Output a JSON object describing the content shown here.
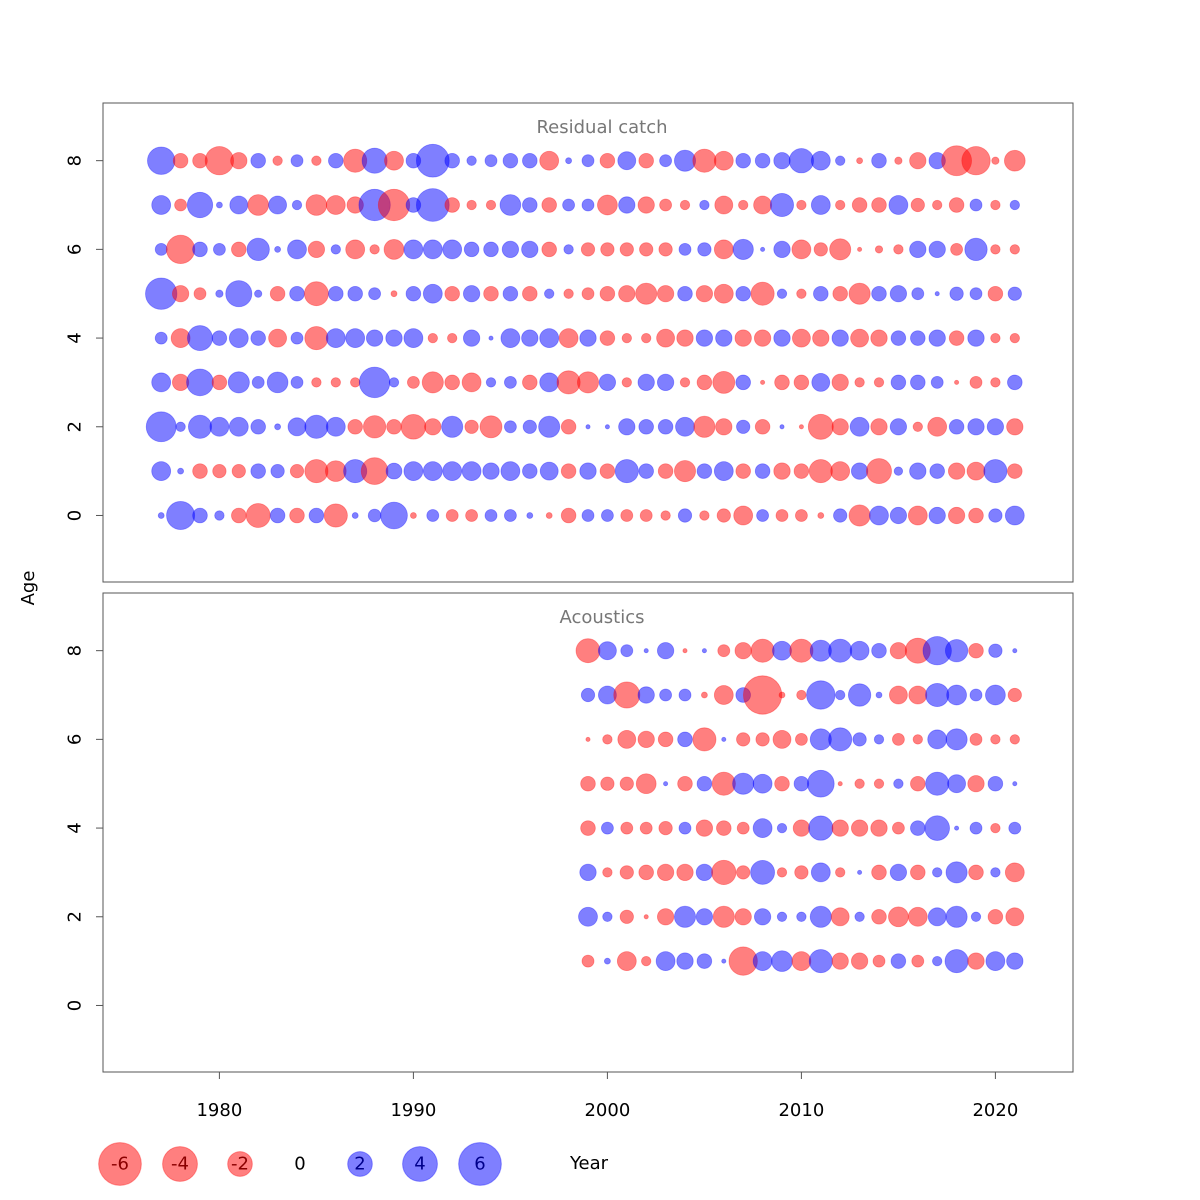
{
  "chart_data": {
    "type": "scatter",
    "subtype": "bubble",
    "ylabel": "Age",
    "xlabel": "Year",
    "xlim": [
      1974,
      2024
    ],
    "ylim": [
      -1.5,
      9.3
    ],
    "x_ticks": [
      1980,
      1990,
      2000,
      2010,
      2020
    ],
    "y_ticks": [
      0,
      2,
      4,
      6,
      8
    ],
    "colors": {
      "positive": "#0000ff",
      "negative": "#ff0000",
      "alpha": 0.5
    },
    "legend": {
      "position": "bottom",
      "entries": [
        {
          "value": -6,
          "label": "-6"
        },
        {
          "value": -4,
          "label": "-4"
        },
        {
          "value": -2,
          "label": "-2"
        },
        {
          "value": 0,
          "label": "0"
        },
        {
          "value": 2,
          "label": "2"
        },
        {
          "value": 4,
          "label": "4"
        },
        {
          "value": 6,
          "label": "6"
        }
      ]
    },
    "panels": [
      {
        "title": "Residual catch",
        "years": [
          1977,
          1978,
          1979,
          1980,
          1981,
          1982,
          1983,
          1984,
          1985,
          1986,
          1987,
          1988,
          1989,
          1990,
          1991,
          1992,
          1993,
          1994,
          1995,
          1996,
          1997,
          1998,
          1999,
          2000,
          2001,
          2002,
          2003,
          2004,
          2005,
          2006,
          2007,
          2008,
          2009,
          2010,
          2011,
          2012,
          2013,
          2014,
          2015,
          2016,
          2017,
          2018,
          2019,
          2020,
          2021
        ],
        "ages": [
          0,
          1,
          2,
          3,
          4,
          5,
          6,
          7,
          8
        ],
        "values": {
          "0": [
            0.2,
            4.4,
            1.2,
            0.5,
            -1.2,
            -3.2,
            1.2,
            -1.2,
            1.2,
            -3.0,
            0.2,
            0.9,
            4.0,
            -0.2,
            0.8,
            -0.8,
            -0.8,
            0.8,
            0.8,
            0.2,
            -0.2,
            -1.2,
            0.8,
            0.8,
            -0.8,
            -0.8,
            -0.5,
            1.0,
            -0.5,
            -1.0,
            -2.0,
            0.8,
            -0.8,
            -0.8,
            -0.2,
            1.0,
            -2.5,
            2.0,
            1.5,
            -2.0,
            1.5,
            -1.5,
            -1.2,
            1.0,
            2.0
          ],
          "1": [
            2.0,
            0.2,
            -1.2,
            -1.0,
            -1.0,
            1.2,
            1.0,
            -1.0,
            -3.0,
            -2.4,
            3.0,
            -4.0,
            1.4,
            2.0,
            2.0,
            2.0,
            2.0,
            1.5,
            2.0,
            1.2,
            1.8,
            -1.2,
            1.5,
            -1.2,
            3.0,
            1.2,
            -1.2,
            -2.5,
            1.2,
            2.0,
            -1.2,
            1.2,
            -1.5,
            -1.2,
            -3.0,
            -2.0,
            1.5,
            -3.5,
            0.4,
            1.5,
            1.2,
            -1.5,
            -1.8,
            3.0,
            -1.2
          ],
          "2": [
            5.0,
            0.5,
            3.0,
            2.0,
            2.0,
            1.2,
            0.2,
            1.8,
            3.0,
            2.0,
            -1.2,
            -2.8,
            -1.2,
            -3.4,
            -1.5,
            2.5,
            -1.0,
            -2.7,
            0.8,
            1.0,
            2.5,
            -1.2,
            0.1,
            0.1,
            1.5,
            1.2,
            1.2,
            2.0,
            -2.5,
            -1.5,
            1.0,
            -1.2,
            0.1,
            -0.1,
            -3.5,
            -1.5,
            2.0,
            -1.5,
            1.5,
            -0.5,
            -2.0,
            1.2,
            1.5,
            1.5,
            -1.5
          ],
          "3": [
            2.0,
            -1.5,
            4.0,
            -1.2,
            2.5,
            0.8,
            2.4,
            0.8,
            -0.5,
            -0.5,
            -0.5,
            5.2,
            0.5,
            -0.8,
            -2.5,
            -1.2,
            -2.0,
            0.5,
            0.8,
            -1.2,
            2.0,
            -3.0,
            -2.5,
            1.5,
            -0.5,
            1.5,
            1.5,
            -0.5,
            -1.2,
            -2.7,
            1.2,
            -0.1,
            -1.2,
            -1.2,
            1.8,
            -1.5,
            -0.5,
            -0.5,
            1.2,
            1.2,
            0.8,
            -0.1,
            -0.8,
            -0.5,
            1.2
          ],
          "4": [
            0.8,
            -2.0,
            3.5,
            1.2,
            2.0,
            1.2,
            -1.8,
            0.8,
            -3.0,
            2.0,
            2.0,
            1.5,
            1.5,
            2.0,
            -0.5,
            -0.5,
            1.5,
            0.1,
            2.0,
            1.5,
            2.0,
            -2.0,
            1.5,
            -1.2,
            -0.5,
            -0.5,
            -1.8,
            -1.5,
            1.5,
            1.5,
            -1.5,
            -1.5,
            1.5,
            -1.8,
            -1.5,
            1.5,
            -1.8,
            -1.5,
            1.2,
            1.2,
            1.5,
            -1.2,
            1.5,
            -0.5,
            -0.5
          ],
          "5": [
            5.5,
            -1.5,
            -0.8,
            0.3,
            3.8,
            0.3,
            -1.2,
            1.2,
            -3.2,
            1.2,
            1.2,
            0.8,
            -0.2,
            1.2,
            2.0,
            -1.2,
            1.5,
            -1.2,
            1.2,
            -1.2,
            0.5,
            -0.5,
            -0.8,
            -1.2,
            -1.5,
            -2.5,
            -1.5,
            1.2,
            -1.5,
            -2.0,
            1.2,
            -3.0,
            0.5,
            -0.5,
            1.2,
            -1.2,
            -2.5,
            1.2,
            1.5,
            0.8,
            0.1,
            1.0,
            0.8,
            -1.2,
            1.0
          ],
          "6": [
            0.8,
            -4.5,
            1.2,
            0.8,
            -1.2,
            2.8,
            0.2,
            2.0,
            -1.5,
            0.5,
            -2.0,
            -0.5,
            -2.2,
            2.0,
            2.0,
            2.0,
            1.2,
            1.2,
            1.5,
            1.5,
            -1.2,
            0.5,
            -1.0,
            -1.0,
            -1.0,
            -1.0,
            -1.0,
            0.8,
            1.0,
            -2.0,
            2.3,
            0.1,
            1.5,
            -2.0,
            -1.0,
            -2.5,
            -0.1,
            -0.3,
            -0.5,
            1.5,
            1.5,
            -0.8,
            2.8,
            -0.5,
            -0.5
          ],
          "7": [
            2.0,
            -0.8,
            3.6,
            0.2,
            1.8,
            -2.4,
            1.8,
            0.5,
            -2.4,
            -2.0,
            -1.5,
            5.5,
            -5.5,
            1.2,
            6.0,
            -1.2,
            -0.5,
            -0.5,
            2.4,
            1.2,
            -1.2,
            0.8,
            0.8,
            -2.2,
            1.5,
            -1.5,
            -0.8,
            -0.5,
            0.5,
            -1.8,
            -0.5,
            -1.8,
            3.0,
            -0.5,
            2.0,
            -0.5,
            -1.2,
            -1.2,
            2.0,
            -1.0,
            -0.5,
            -1.2,
            0.8,
            -0.5,
            0.5
          ],
          "8": [
            4.2,
            -1.2,
            -1.2,
            -4.5,
            -1.5,
            1.2,
            -0.5,
            0.8,
            -0.5,
            1.2,
            -3.0,
            3.5,
            -2.0,
            1.2,
            6.0,
            1.2,
            0.5,
            0.8,
            1.2,
            1.2,
            -2.0,
            0.2,
            0.8,
            -1.2,
            1.8,
            -1.2,
            0.8,
            2.5,
            -3.0,
            -2.0,
            1.2,
            1.2,
            1.5,
            3.3,
            2.0,
            0.5,
            -0.2,
            1.2,
            -0.3,
            -1.5,
            1.5,
            -5.0,
            -4.5,
            -0.3,
            -2.4
          ]
        }
      },
      {
        "title": "Acoustics",
        "years": [
          1999,
          2000,
          2001,
          2002,
          2003,
          2004,
          2005,
          2006,
          2007,
          2008,
          2009,
          2010,
          2011,
          2012,
          2013,
          2014,
          2015,
          2016,
          2017,
          2018,
          2019,
          2020,
          2021
        ],
        "ages": [
          1,
          2,
          3,
          4,
          5,
          6,
          7,
          8
        ],
        "values": {
          "1": [
            -0.8,
            0.2,
            -2.0,
            -0.5,
            2.0,
            1.5,
            1.2,
            0.1,
            -4.5,
            2.0,
            2.4,
            -2.0,
            3.0,
            -1.5,
            -1.5,
            -0.8,
            1.2,
            -0.8,
            0.5,
            3.0,
            -1.5,
            2.0,
            1.5
          ],
          "2": [
            2.0,
            0.5,
            -1.0,
            -0.1,
            -1.5,
            2.5,
            1.5,
            -2.5,
            -1.5,
            1.5,
            0.5,
            0.5,
            2.5,
            -1.8,
            0.5,
            -1.2,
            -2.2,
            -2.0,
            1.8,
            2.5,
            0.5,
            -1.2,
            -1.8
          ],
          "3": [
            1.5,
            -0.5,
            -1.0,
            -1.2,
            -1.5,
            -1.5,
            1.5,
            -3.3,
            -1.0,
            3.2,
            -0.5,
            -1.0,
            2.0,
            -0.5,
            0.1,
            -1.2,
            1.5,
            -1.2,
            0.5,
            2.5,
            -1.2,
            0.5,
            -2.0
          ],
          "4": [
            -1.2,
            0.8,
            -0.8,
            -0.8,
            -1.0,
            0.8,
            -1.5,
            -1.2,
            -0.8,
            2.0,
            0.5,
            -1.5,
            3.3,
            -1.5,
            -1.5,
            -1.5,
            -0.8,
            1.2,
            3.4,
            0.1,
            0.8,
            -0.5,
            0.8
          ],
          "5": [
            -1.2,
            -1.0,
            -1.0,
            -2.2,
            0.1,
            -1.2,
            1.2,
            -3.0,
            2.5,
            2.0,
            -1.2,
            1.2,
            4.0,
            -0.1,
            -0.5,
            -0.5,
            0.5,
            -1.2,
            3.0,
            1.8,
            -1.5,
            1.2,
            0.1
          ],
          "6": [
            -0.1,
            -0.5,
            -1.8,
            -1.5,
            -1.2,
            1.2,
            -3.0,
            0.1,
            -1.0,
            -1.0,
            -1.8,
            -0.8,
            2.5,
            3.0,
            1.0,
            0.5,
            -0.8,
            -0.5,
            2.0,
            2.5,
            -0.8,
            -0.5,
            -0.5
          ],
          "7": [
            1.0,
            1.8,
            -3.8,
            1.5,
            0.8,
            0.8,
            -0.2,
            -2.0,
            1.2,
            -8.2,
            -0.2,
            -0.5,
            4.5,
            0.5,
            2.8,
            0.2,
            -1.8,
            -1.8,
            3.0,
            2.2,
            0.8,
            2.2,
            -1.0
          ],
          "8": [
            -3.2,
            1.8,
            0.8,
            0.1,
            1.5,
            -0.1,
            0.1,
            -0.8,
            -1.5,
            -3.0,
            2.0,
            -3.0,
            2.5,
            3.0,
            2.0,
            1.2,
            -1.5,
            -3.5,
            4.5,
            2.8,
            -1.2,
            1.0,
            0.1
          ]
        }
      }
    ]
  }
}
